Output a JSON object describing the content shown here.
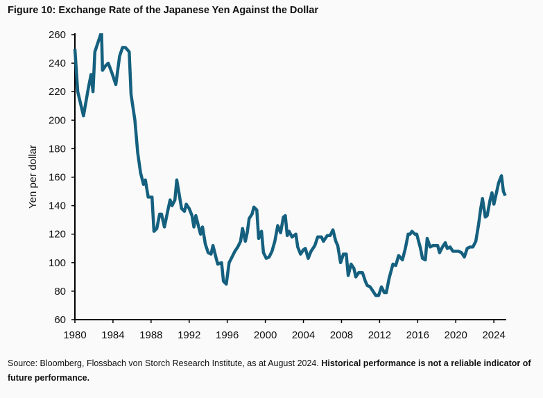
{
  "title": "Figure 10: Exchange Rate of the Japanese Yen Against the Dollar",
  "source": {
    "text": "Source: Bloomberg, Flossbach von Storch Research Institute, as at August 2024. ",
    "bold": "Historical performance is not a reliable indicator of future performance."
  },
  "chart_data": {
    "type": "line",
    "title": "Figure 10: Exchange Rate of the Japanese Yen Against the Dollar",
    "xlabel": "",
    "ylabel": "Yen per dollar",
    "xlim": [
      1980,
      2025.3
    ],
    "ylim": [
      60,
      260
    ],
    "xticks": [
      1980,
      1984,
      1988,
      1992,
      1996,
      2000,
      2004,
      2008,
      2012,
      2016,
      2020,
      2024
    ],
    "yticks": [
      60,
      80,
      100,
      120,
      140,
      160,
      180,
      200,
      220,
      240,
      260
    ],
    "grid": false,
    "line_color": "#15607f",
    "x": [
      1980.0,
      1980.3,
      1980.9,
      1981.4,
      1981.7,
      1981.9,
      1982.1,
      1982.5,
      1982.8,
      1982.9,
      1983.2,
      1983.5,
      1983.9,
      1984.3,
      1984.7,
      1985.0,
      1985.3,
      1985.7,
      1985.9,
      1986.3,
      1986.6,
      1986.9,
      1987.2,
      1987.4,
      1987.7,
      1988.1,
      1988.3,
      1988.6,
      1988.9,
      1989.1,
      1989.4,
      1989.8,
      1990.0,
      1990.2,
      1990.5,
      1990.7,
      1990.9,
      1991.2,
      1991.5,
      1991.7,
      1992.0,
      1992.3,
      1992.5,
      1992.7,
      1993.0,
      1993.2,
      1993.4,
      1993.7,
      1994.0,
      1994.3,
      1994.5,
      1994.8,
      1995.0,
      1995.4,
      1995.6,
      1995.9,
      1996.2,
      1996.5,
      1996.8,
      1997.1,
      1997.4,
      1997.6,
      1997.9,
      1998.1,
      1998.3,
      1998.6,
      1998.8,
      1999.1,
      1999.3,
      1999.6,
      1999.8,
      2000.1,
      2000.4,
      2000.7,
      2001.0,
      2001.3,
      2001.6,
      2001.9,
      2002.1,
      2002.3,
      2002.5,
      2002.8,
      2003.2,
      2003.4,
      2003.7,
      2004.0,
      2004.2,
      2004.5,
      2004.8,
      2005.2,
      2005.5,
      2005.9,
      2006.1,
      2006.5,
      2006.8,
      2007.1,
      2007.4,
      2007.6,
      2007.9,
      2008.2,
      2008.5,
      2008.7,
      2009.0,
      2009.3,
      2009.5,
      2009.8,
      2010.2,
      2010.5,
      2010.7,
      2011.0,
      2011.3,
      2011.6,
      2011.9,
      2012.2,
      2012.5,
      2012.7,
      2013.0,
      2013.4,
      2013.7,
      2014.0,
      2014.4,
      2014.7,
      2015.0,
      2015.2,
      2015.4,
      2015.7,
      2015.9,
      2016.3,
      2016.5,
      2016.8,
      2017.0,
      2017.3,
      2017.6,
      2017.9,
      2018.1,
      2018.3,
      2018.6,
      2018.9,
      2019.1,
      2019.4,
      2019.7,
      2020.0,
      2020.3,
      2020.6,
      2020.9,
      2021.2,
      2021.5,
      2021.8,
      2022.1,
      2022.4,
      2022.6,
      2022.8,
      2023.1,
      2023.3,
      2023.6,
      2023.8,
      2024.0,
      2024.3,
      2024.5,
      2024.8,
      2025.0,
      2025.2
    ],
    "values": [
      250,
      220,
      203,
      222,
      232,
      220,
      248,
      256,
      262,
      235,
      238,
      240,
      233,
      225,
      245,
      251,
      251,
      248,
      218,
      200,
      177,
      163,
      155,
      158,
      146,
      146,
      122,
      124,
      134,
      134,
      125,
      138,
      144,
      140,
      144,
      158,
      150,
      138,
      136,
      141,
      138,
      133,
      125,
      133,
      125,
      120,
      125,
      113,
      107,
      106,
      112,
      104,
      99,
      100,
      87,
      85,
      100,
      104,
      108,
      111,
      115,
      124,
      115,
      121,
      131,
      134,
      139,
      137,
      117,
      122,
      107,
      103,
      104,
      108,
      115,
      126,
      121,
      132,
      133,
      119,
      122,
      118,
      120,
      111,
      106,
      109,
      110,
      103,
      108,
      112,
      118,
      118,
      115,
      119,
      119,
      123,
      115,
      112,
      100,
      106,
      106,
      91,
      99,
      96,
      90,
      93,
      93,
      87,
      84,
      83,
      80,
      77,
      77,
      83,
      79,
      79,
      89,
      99,
      98,
      105,
      102,
      110,
      120,
      120,
      122,
      120,
      120,
      110,
      103,
      102,
      117,
      111,
      112,
      112,
      112,
      107,
      111,
      114,
      110,
      111,
      108,
      108,
      108,
      107,
      104,
      110,
      111,
      111,
      115,
      127,
      137,
      145,
      132,
      133,
      144,
      149,
      141,
      150,
      156,
      161,
      150,
      147
    ]
  }
}
